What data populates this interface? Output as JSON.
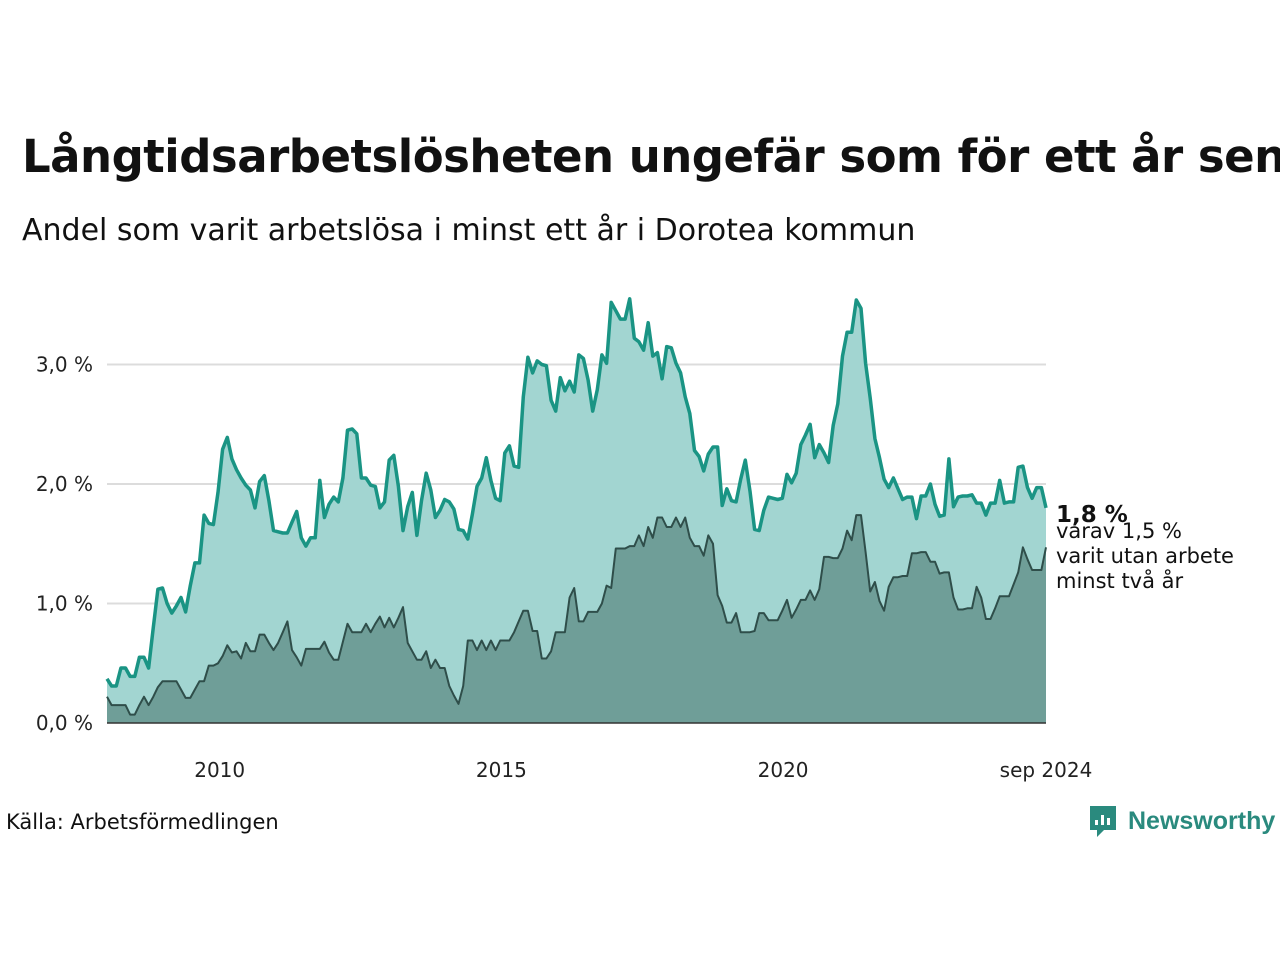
{
  "title": "Långtidsarbetslösheten ungefär som för ett år sen",
  "subtitle": "Andel som varit arbetslösa i minst ett år i Dorotea kommun",
  "source": "Källa: Arbetsförmedlingen",
  "logo": {
    "text": "Newsworthy",
    "icon": "newsworthy-logo-icon",
    "color": "#2a8a7e"
  },
  "colors": {
    "line": "#1a9484",
    "area_total": "#a2d5d1",
    "area_long": "#6f9e98",
    "line_long": "#2f4e4a",
    "grid": "#dcdcdc"
  },
  "end_labels": {
    "value": "1,8 %",
    "line1": "varav 1,5 %",
    "line2": "varit utan arbete",
    "line3": "minst två år"
  },
  "chart_data": {
    "type": "area",
    "x_start": "2008-01",
    "x_end": "2024-09",
    "x_ticks": [
      "2010",
      "2015",
      "2020",
      "sep 2024"
    ],
    "y_ticks": [
      "0,0 %",
      "1,0 %",
      "2,0 %",
      "3,0 %"
    ],
    "ylim": [
      0,
      3.5
    ],
    "grid": true,
    "series": [
      {
        "key": "total",
        "values": [
          0.37,
          0.31,
          0.31,
          0.46,
          0.46,
          0.39,
          0.39,
          0.55,
          0.55,
          0.46,
          0.8,
          1.12,
          1.13,
          1.0,
          0.92,
          0.98,
          1.05,
          0.93,
          1.15,
          1.34,
          1.34,
          1.74,
          1.67,
          1.66,
          1.93,
          2.29,
          2.39,
          2.21,
          2.12,
          2.05,
          1.99,
          1.95,
          1.8,
          2.02,
          2.07,
          1.86,
          1.61,
          1.6,
          1.59,
          1.59,
          1.68,
          1.77,
          1.55,
          1.48,
          1.55,
          1.55,
          2.03,
          1.72,
          1.83,
          1.89,
          1.85,
          2.05,
          2.45,
          2.46,
          2.42,
          2.05,
          2.05,
          1.99,
          1.98,
          1.8,
          1.85,
          2.2,
          2.24,
          1.98,
          1.61,
          1.81,
          1.93,
          1.57,
          1.86,
          2.09,
          1.95,
          1.72,
          1.78,
          1.87,
          1.85,
          1.79,
          1.62,
          1.61,
          1.54,
          1.75,
          1.98,
          2.05,
          2.22,
          2.03,
          1.88,
          1.86,
          2.26,
          2.32,
          2.15,
          2.14,
          2.73,
          3.06,
          2.93,
          3.03,
          3.0,
          2.99,
          2.7,
          2.61,
          2.89,
          2.78,
          2.86,
          2.77,
          3.08,
          3.05,
          2.87,
          2.61,
          2.79,
          3.08,
          3.01,
          3.52,
          3.45,
          3.38,
          3.38,
          3.55,
          3.22,
          3.19,
          3.12,
          3.35,
          3.07,
          3.1,
          2.88,
          3.15,
          3.14,
          3.01,
          2.93,
          2.73,
          2.59,
          2.28,
          2.23,
          2.11,
          2.25,
          2.31,
          2.31,
          1.82,
          1.96,
          1.86,
          1.85,
          2.04,
          2.2,
          1.94,
          1.62,
          1.61,
          1.78,
          1.89,
          1.88,
          1.87,
          1.88,
          2.08,
          2.01,
          2.09,
          2.33,
          2.41,
          2.5,
          2.22,
          2.33,
          2.26,
          2.18,
          2.49,
          2.67,
          3.07,
          3.27,
          3.27,
          3.54,
          3.47,
          3.01,
          2.72,
          2.38,
          2.22,
          2.04,
          1.97,
          2.05,
          1.96,
          1.87,
          1.89,
          1.89,
          1.71,
          1.9,
          1.9,
          2.0,
          1.83,
          1.73,
          1.74,
          2.21,
          1.81,
          1.89,
          1.9,
          1.9,
          1.91,
          1.84,
          1.84,
          1.74,
          1.84,
          1.84,
          2.03,
          1.84,
          1.85,
          1.85,
          2.14,
          2.15,
          1.97,
          1.88,
          1.97,
          1.97,
          1.8
        ]
      },
      {
        "key": "long",
        "values": [
          0.22,
          0.15,
          0.15,
          0.15,
          0.15,
          0.07,
          0.07,
          0.15,
          0.22,
          0.15,
          0.22,
          0.3,
          0.35,
          0.35,
          0.35,
          0.35,
          0.28,
          0.21,
          0.21,
          0.28,
          0.35,
          0.35,
          0.48,
          0.48,
          0.5,
          0.56,
          0.65,
          0.59,
          0.6,
          0.54,
          0.67,
          0.6,
          0.6,
          0.74,
          0.74,
          0.67,
          0.61,
          0.67,
          0.76,
          0.85,
          0.61,
          0.55,
          0.48,
          0.62,
          0.62,
          0.62,
          0.62,
          0.68,
          0.59,
          0.53,
          0.53,
          0.68,
          0.83,
          0.76,
          0.76,
          0.76,
          0.83,
          0.76,
          0.83,
          0.89,
          0.8,
          0.88,
          0.8,
          0.88,
          0.97,
          0.67,
          0.6,
          0.53,
          0.53,
          0.6,
          0.46,
          0.53,
          0.46,
          0.46,
          0.31,
          0.23,
          0.16,
          0.31,
          0.69,
          0.69,
          0.61,
          0.69,
          0.61,
          0.69,
          0.61,
          0.69,
          0.69,
          0.69,
          0.76,
          0.85,
          0.94,
          0.94,
          0.77,
          0.77,
          0.54,
          0.54,
          0.6,
          0.76,
          0.76,
          0.76,
          1.05,
          1.13,
          0.85,
          0.85,
          0.93,
          0.93,
          0.93,
          1.0,
          1.15,
          1.13,
          1.46,
          1.46,
          1.46,
          1.48,
          1.48,
          1.57,
          1.48,
          1.64,
          1.55,
          1.72,
          1.72,
          1.64,
          1.64,
          1.72,
          1.64,
          1.72,
          1.55,
          1.48,
          1.48,
          1.4,
          1.57,
          1.5,
          1.07,
          0.98,
          0.84,
          0.84,
          0.92,
          0.76,
          0.76,
          0.76,
          0.77,
          0.92,
          0.92,
          0.86,
          0.86,
          0.86,
          0.94,
          1.03,
          0.88,
          0.95,
          1.03,
          1.03,
          1.11,
          1.03,
          1.12,
          1.39,
          1.39,
          1.38,
          1.38,
          1.46,
          1.61,
          1.53,
          1.74,
          1.74,
          1.43,
          1.1,
          1.18,
          1.02,
          0.94,
          1.14,
          1.22,
          1.22,
          1.23,
          1.23,
          1.42,
          1.42,
          1.43,
          1.43,
          1.35,
          1.35,
          1.25,
          1.26,
          1.26,
          1.05,
          0.95,
          0.95,
          0.96,
          0.96,
          1.14,
          1.05,
          0.87,
          0.87,
          0.96,
          1.06,
          1.06,
          1.06,
          1.16,
          1.26,
          1.47,
          1.37,
          1.28,
          1.28,
          1.28,
          1.47
        ]
      }
    ]
  }
}
